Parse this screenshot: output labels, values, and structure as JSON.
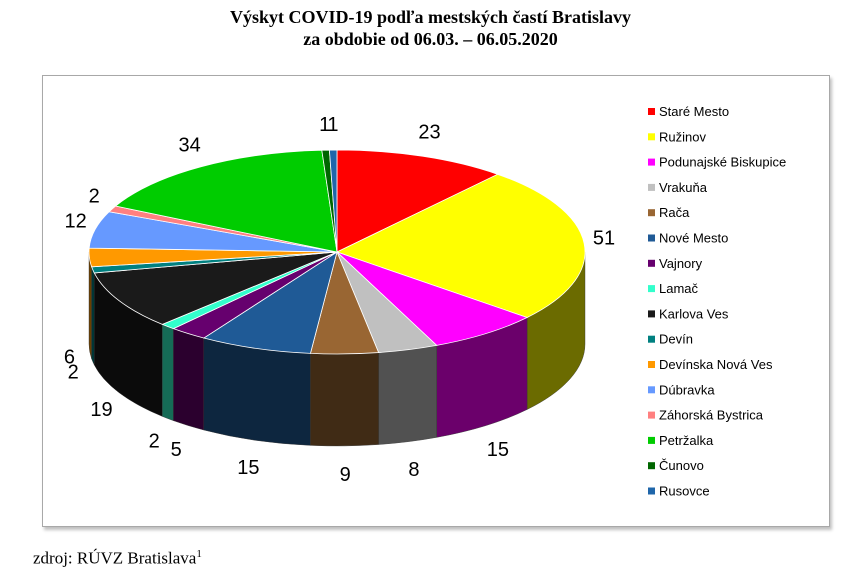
{
  "title": {
    "line1": "Výskyt COVID-19 podľa mestských častí Bratislavy",
    "line2": "za obdobie od 06.03. – 06.05.2020"
  },
  "source": {
    "text": "zdroj: RÚVZ Bratislava",
    "footnote": "1"
  },
  "chart_data": {
    "type": "pie",
    "style": "3d-pie",
    "legend_position": "right",
    "categories": [
      "Staré Mesto",
      "Ružinov",
      "Podunajské Biskupice",
      "Vrakuňa",
      "Rača",
      "Nové Mesto",
      "Vajnory",
      "Lamač",
      "Karlova Ves",
      "Devín",
      "Devínska Nová Ves",
      "Dúbravka",
      "Záhorská Bystrica",
      "Petržalka",
      "Čunovo",
      "Rusovce"
    ],
    "values": [
      23,
      51,
      15,
      8,
      9,
      15,
      5,
      2,
      19,
      2,
      6,
      12,
      2,
      34,
      1,
      1
    ],
    "colors": [
      "#ff0000",
      "#ffff00",
      "#ff00ff",
      "#c0c0c0",
      "#996633",
      "#1f5a96",
      "#66006e",
      "#33ffcc",
      "#1a1a1a",
      "#008080",
      "#ff9900",
      "#6699ff",
      "#ff8080",
      "#00cc00",
      "#006600",
      "#1f66aa"
    ]
  }
}
